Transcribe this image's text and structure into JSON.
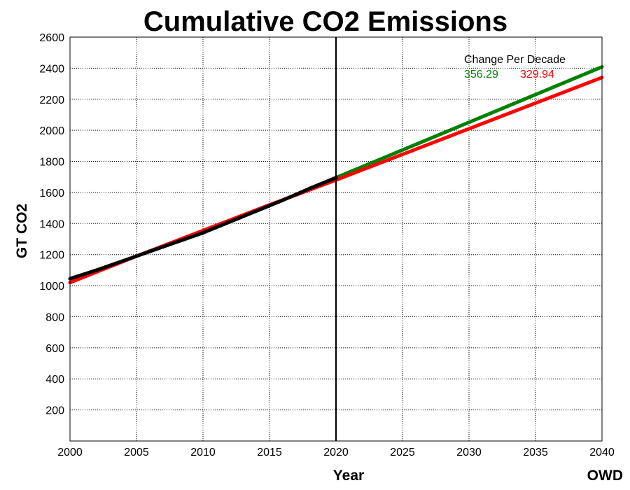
{
  "chart_data": {
    "type": "line",
    "title": "Cumulative CO2 Emissions",
    "xlabel": "Year",
    "ylabel": "GT CO2",
    "credit": "OWD",
    "xlim": [
      2000,
      2040
    ],
    "ylim": [
      0,
      2600
    ],
    "xticks": [
      2000,
      2005,
      2010,
      2015,
      2020,
      2025,
      2030,
      2035,
      2040
    ],
    "yticks": [
      200,
      400,
      600,
      800,
      1000,
      1200,
      1400,
      1600,
      1800,
      2000,
      2200,
      2400,
      2600
    ],
    "grid": true,
    "vline_x": 2020,
    "annotation": {
      "heading": "Change Per Decade",
      "values": [
        {
          "text": "356.29",
          "color": "#008000"
        },
        {
          "text": "329.94",
          "color": "#ff0000"
        }
      ]
    },
    "series": [
      {
        "color": "#008000",
        "x": [
          2020,
          2040
        ],
        "y": [
          1695,
          2408
        ]
      },
      {
        "color": "#ff0000",
        "x": [
          2000,
          2005,
          2010,
          2015,
          2020,
          2025,
          2030,
          2035,
          2040
        ],
        "y": [
          1020,
          1190,
          1355,
          1520,
          1680,
          1845,
          2010,
          2175,
          2340
        ]
      },
      {
        "color": "#000000",
        "x": [
          2000,
          2002,
          2004,
          2006,
          2008,
          2010,
          2012,
          2014,
          2016,
          2018,
          2020
        ],
        "y": [
          1045,
          1100,
          1160,
          1220,
          1280,
          1340,
          1410,
          1480,
          1550,
          1625,
          1695
        ]
      }
    ]
  }
}
